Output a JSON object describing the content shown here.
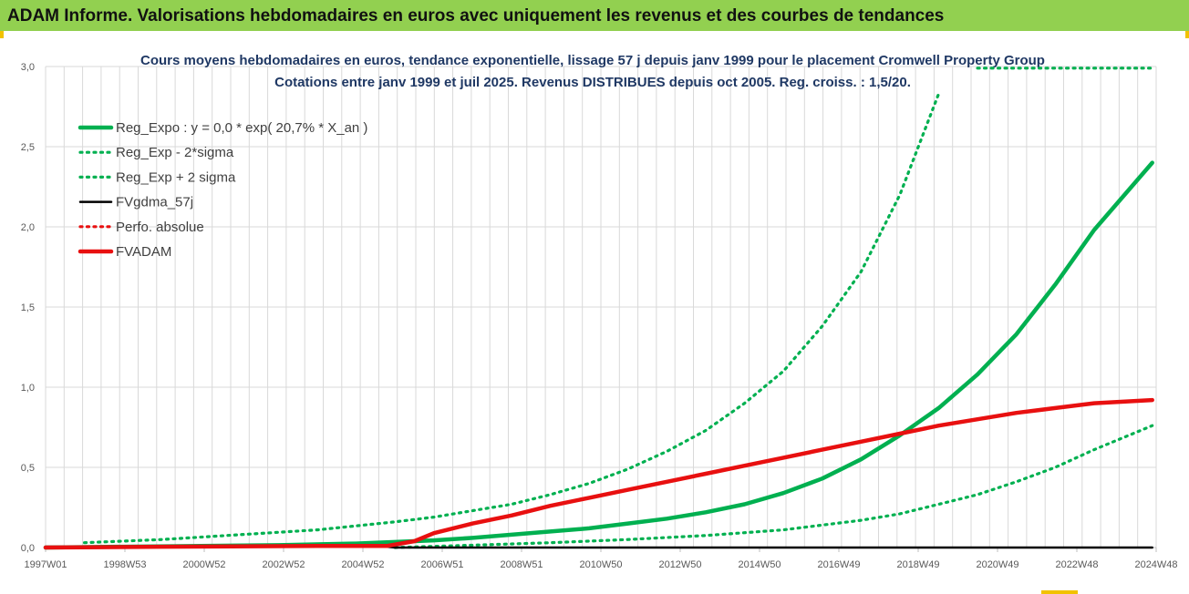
{
  "banner": {
    "title": "ADAM Informe. Valorisations hebdomadaires en euros avec uniquement les revenus et des courbes de tendances"
  },
  "colors": {
    "banner_bg": "#92d050",
    "reg_expo": "#00b050",
    "fvadam": "#e81010",
    "fvgdma": "#000000",
    "grid": "#d9d9d9"
  },
  "chart_data": {
    "type": "line",
    "title_lines": [
      "Cours moyens hebdomadaires en euros, tendance exponentielle, lissage 57 j depuis janv 1999 pour le placement Cromwell Property Group",
      "Cotations entre janv 1999 et juil 2025. Revenus DISTRIBUES depuis oct 2005. Reg. croiss. : 1,5/20."
    ],
    "x_tick_labels": [
      "1997W01",
      "1998W53",
      "2000W52",
      "2002W52",
      "2004W52",
      "2006W51",
      "2008W51",
      "2010W50",
      "2012W50",
      "2014W50",
      "2016W49",
      "2018W49",
      "2020W49",
      "2022W48",
      "2024W48"
    ],
    "x_range_years": [
      1997.0,
      2025.6
    ],
    "y_tick_labels": [
      "0,0",
      "0,5",
      "1,0",
      "1,5",
      "2,0",
      "2,5",
      "3,0"
    ],
    "ylim": [
      0,
      3
    ],
    "grid": true,
    "legend_position": "top-left",
    "series": [
      {
        "name": "Reg_Expo : y = 0,0 * exp( 20,7% *  X_an )",
        "style": "solid",
        "color": "#00b050",
        "x": [
          1997.0,
          1999.0,
          2001.0,
          2003.0,
          2005.0,
          2007.0,
          2008.0,
          2009.0,
          2010.0,
          2011.0,
          2012.0,
          2013.0,
          2014.0,
          2015.0,
          2016.0,
          2017.0,
          2018.0,
          2019.0,
          2020.0,
          2021.0,
          2022.0,
          2023.0,
          2024.0,
          2025.5
        ],
        "y": [
          0.0,
          0.005,
          0.01,
          0.015,
          0.025,
          0.045,
          0.06,
          0.08,
          0.1,
          0.12,
          0.15,
          0.18,
          0.22,
          0.27,
          0.34,
          0.43,
          0.55,
          0.7,
          0.87,
          1.08,
          1.33,
          1.64,
          1.98,
          2.4
        ]
      },
      {
        "name": "Reg_Exp - 2*sigma",
        "style": "dotted",
        "color": "#00b050",
        "x": [
          2006.0,
          2008.0,
          2010.0,
          2012.0,
          2014.0,
          2016.0,
          2018.0,
          2019.0,
          2020.0,
          2021.0,
          2022.0,
          2023.0,
          2024.0,
          2025.5
        ],
        "y": [
          0.0,
          0.015,
          0.03,
          0.05,
          0.075,
          0.11,
          0.17,
          0.21,
          0.27,
          0.33,
          0.41,
          0.5,
          0.61,
          0.76
        ]
      },
      {
        "name": "Reg_Exp + 2 sigma",
        "style": "dotted",
        "color": "#00b050",
        "x": [
          1998.0,
          2000.0,
          2002.0,
          2004.0,
          2006.0,
          2007.0,
          2008.0,
          2009.0,
          2010.0,
          2011.0,
          2012.0,
          2013.0,
          2014.0,
          2015.0,
          2016.0,
          2017.0,
          2018.0,
          2019.0,
          2020.0
        ],
        "y": [
          0.03,
          0.05,
          0.08,
          0.11,
          0.16,
          0.19,
          0.23,
          0.27,
          0.33,
          0.4,
          0.49,
          0.6,
          0.73,
          0.9,
          1.1,
          1.38,
          1.72,
          2.2,
          2.83
        ]
      },
      {
        "name": "Reg_Exp + 2 sigma",
        "style": "dotted",
        "color": "#00b050",
        "x": [
          2021.0,
          2025.5
        ],
        "y": [
          2.99,
          2.99
        ]
      },
      {
        "name": "FVgdma_57j",
        "style": "solid",
        "color": "#000000",
        "x": [
          1997.0,
          2005.8,
          2006.0,
          2025.5
        ],
        "y": [
          0.005,
          0.005,
          0.0,
          0.0
        ]
      },
      {
        "name": "Perfo. absolue",
        "style": "dotted",
        "color": "#e81010",
        "x": [],
        "y": []
      },
      {
        "name": "FVADAM",
        "style": "solid",
        "color": "#e81010",
        "x": [
          1997.0,
          2000.0,
          2004.0,
          2005.8,
          2006.5,
          2007.0,
          2008.0,
          2009.0,
          2010.0,
          2011.0,
          2012.0,
          2013.0,
          2014.0,
          2015.0,
          2016.0,
          2017.0,
          2018.0,
          2019.0,
          2020.0,
          2021.0,
          2022.0,
          2023.0,
          2024.0,
          2025.5
        ],
        "y": [
          0.0,
          0.005,
          0.01,
          0.01,
          0.04,
          0.09,
          0.15,
          0.2,
          0.26,
          0.31,
          0.36,
          0.41,
          0.46,
          0.51,
          0.56,
          0.61,
          0.66,
          0.71,
          0.76,
          0.8,
          0.84,
          0.87,
          0.9,
          0.92
        ]
      }
    ]
  }
}
